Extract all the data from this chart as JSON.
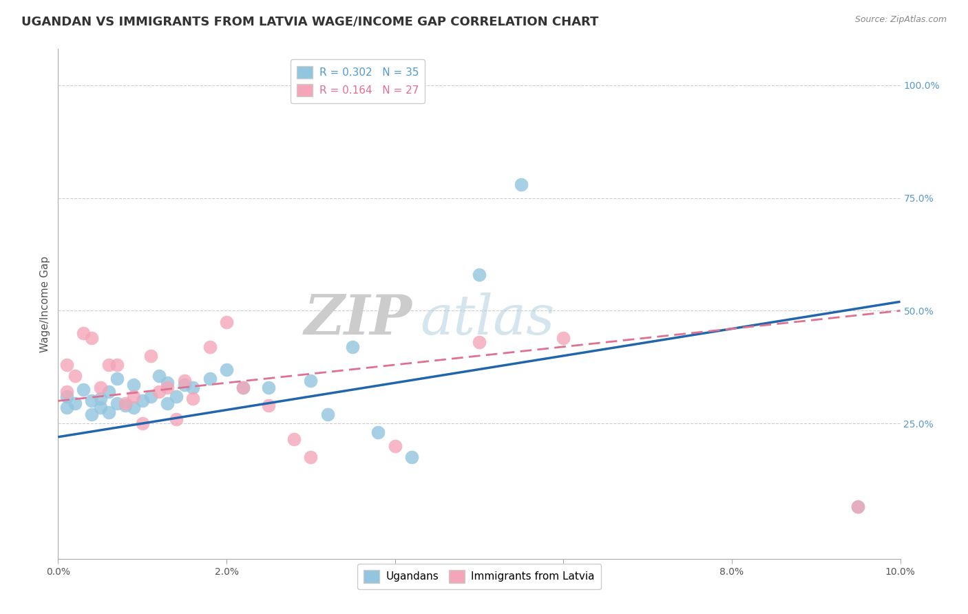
{
  "title": "UGANDAN VS IMMIGRANTS FROM LATVIA WAGE/INCOME GAP CORRELATION CHART",
  "source": "Source: ZipAtlas.com",
  "xlabel": "",
  "ylabel": "Wage/Income Gap",
  "xlim": [
    0.0,
    0.1
  ],
  "ylim": [
    -0.05,
    1.08
  ],
  "xticks": [
    0.0,
    0.02,
    0.04,
    0.06,
    0.08,
    0.1
  ],
  "xticklabels": [
    "0.0%",
    "2.0%",
    "4.0%",
    "6.0%",
    "8.0%",
    "10.0%"
  ],
  "yticks_right": [
    0.25,
    0.5,
    0.75,
    1.0
  ],
  "yticklabels_right": [
    "25.0%",
    "50.0%",
    "75.0%",
    "100.0%"
  ],
  "grid_color": "#cccccc",
  "background_color": "#ffffff",
  "watermark_zip": "ZIP",
  "watermark_atlas": "atlas",
  "blue_color": "#92c5de",
  "pink_color": "#f4a6b8",
  "blue_line_color": "#2166ac",
  "pink_line_color": "#e07090",
  "R_blue": 0.302,
  "N_blue": 35,
  "R_pink": 0.164,
  "N_pink": 27,
  "blue_x": [
    0.001,
    0.001,
    0.002,
    0.003,
    0.004,
    0.004,
    0.005,
    0.005,
    0.006,
    0.006,
    0.007,
    0.007,
    0.008,
    0.009,
    0.009,
    0.01,
    0.011,
    0.012,
    0.013,
    0.013,
    0.014,
    0.015,
    0.016,
    0.018,
    0.02,
    0.022,
    0.025,
    0.03,
    0.032,
    0.038,
    0.042,
    0.05,
    0.035,
    0.055,
    0.095
  ],
  "blue_y": [
    0.285,
    0.31,
    0.295,
    0.325,
    0.3,
    0.27,
    0.305,
    0.285,
    0.32,
    0.275,
    0.295,
    0.35,
    0.29,
    0.335,
    0.285,
    0.3,
    0.31,
    0.355,
    0.34,
    0.295,
    0.31,
    0.335,
    0.33,
    0.35,
    0.37,
    0.33,
    0.33,
    0.345,
    0.27,
    0.23,
    0.175,
    0.58,
    0.42,
    0.78,
    0.065
  ],
  "pink_x": [
    0.001,
    0.001,
    0.002,
    0.003,
    0.004,
    0.005,
    0.006,
    0.007,
    0.008,
    0.009,
    0.01,
    0.011,
    0.012,
    0.013,
    0.014,
    0.015,
    0.016,
    0.018,
    0.02,
    0.022,
    0.025,
    0.028,
    0.03,
    0.04,
    0.05,
    0.06,
    0.095
  ],
  "pink_y": [
    0.32,
    0.38,
    0.355,
    0.45,
    0.44,
    0.33,
    0.38,
    0.38,
    0.295,
    0.31,
    0.25,
    0.4,
    0.32,
    0.33,
    0.26,
    0.345,
    0.305,
    0.42,
    0.475,
    0.33,
    0.29,
    0.215,
    0.175,
    0.2,
    0.43,
    0.44,
    0.065
  ],
  "dot_size": 200,
  "title_fontsize": 13,
  "label_fontsize": 11,
  "tick_fontsize": 10,
  "legend_fontsize": 11,
  "blue_line_intercept": 0.22,
  "blue_line_slope": 3.0,
  "pink_line_intercept": 0.3,
  "pink_line_slope": 2.0
}
